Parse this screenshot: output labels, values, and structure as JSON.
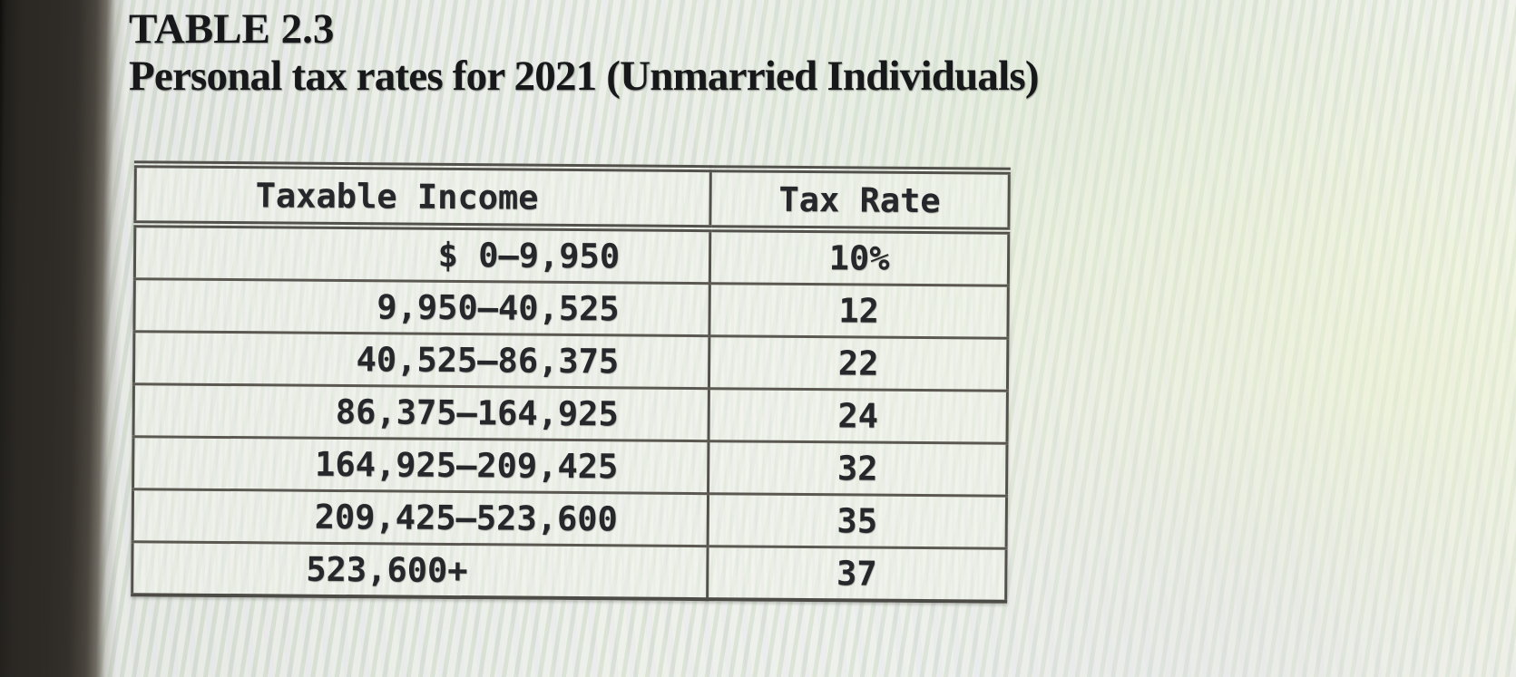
{
  "caption": {
    "label": "TABLE 2.3",
    "title": "Personal tax rates for 2021 (Unmarried Individuals)"
  },
  "table": {
    "columns": [
      "Taxable Income",
      "Tax Rate"
    ],
    "rows": [
      {
        "income": "$ 0–9,950",
        "rate": "10%"
      },
      {
        "income": "9,950–40,525",
        "rate": "12"
      },
      {
        "income": "40,525–86,375",
        "rate": "22"
      },
      {
        "income": "86,375–164,925",
        "rate": "24"
      },
      {
        "income": "164,925–209,425",
        "rate": "32"
      },
      {
        "income": "209,425–523,600",
        "rate": "35"
      },
      {
        "income": "523,600+",
        "rate": "37"
      }
    ]
  },
  "colors": {
    "screen_background": "#e8ebe4",
    "moire_green": "#cfe3c8",
    "moire_lavender": "#dcdaf0",
    "bezel_shadow": "#2b2824",
    "table_border": "#53514b",
    "table_text": "#26272a",
    "caption_text": "#17181a"
  }
}
